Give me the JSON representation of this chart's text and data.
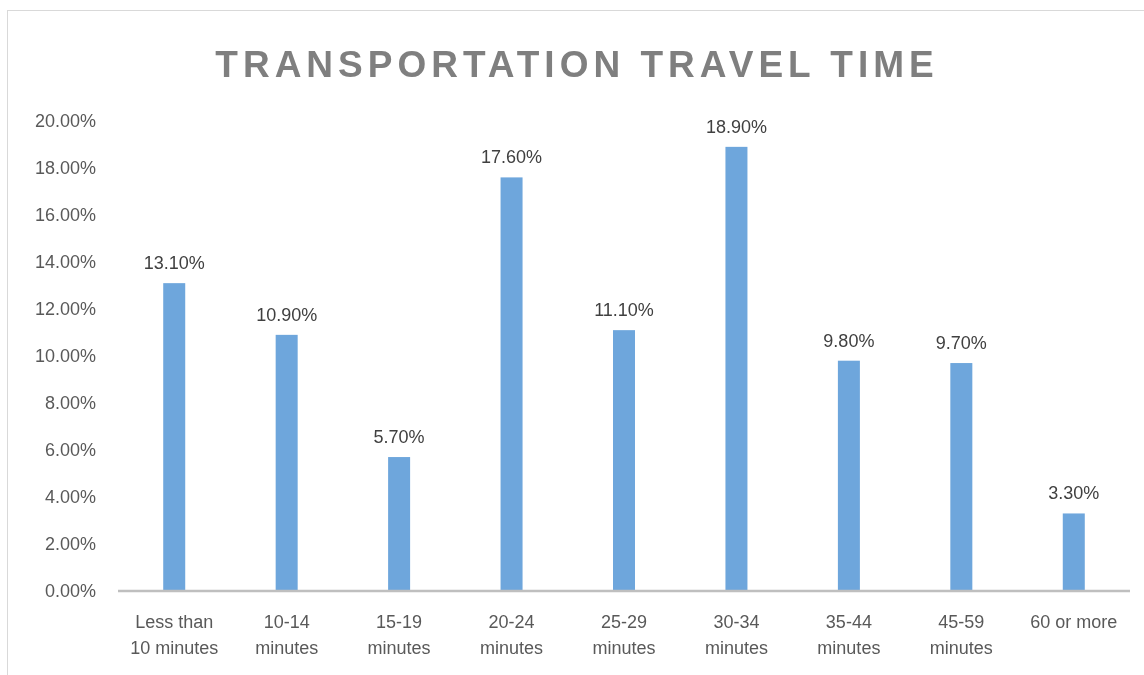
{
  "chart_data": {
    "type": "bar",
    "title": "TRANSPORTATION TRAVEL TIME",
    "categories": [
      "Less than 10 minutes",
      "10-14 minutes",
      "15-19 minutes",
      "20-24 minutes",
      "25-29 minutes",
      "30-34 minutes",
      "35-44 minutes",
      "45-59 minutes",
      "60 or more"
    ],
    "values": [
      13.1,
      10.9,
      5.7,
      17.6,
      11.1,
      18.9,
      9.8,
      9.7,
      3.3
    ],
    "value_labels": [
      "13.10%",
      "10.90%",
      "5.70%",
      "17.60%",
      "11.10%",
      "18.90%",
      "9.80%",
      "9.70%",
      "3.30%"
    ],
    "color": "#6ea6dc",
    "ylim": [
      0,
      20
    ],
    "yticks": [
      {
        "value": 0,
        "label": "0.00%"
      },
      {
        "value": 2,
        "label": "2.00%"
      },
      {
        "value": 4,
        "label": "4.00%"
      },
      {
        "value": 6,
        "label": "6.00%"
      },
      {
        "value": 8,
        "label": "8.00%"
      },
      {
        "value": 10,
        "label": "10.00%"
      },
      {
        "value": 12,
        "label": "12.00%"
      },
      {
        "value": 14,
        "label": "14.00%"
      },
      {
        "value": 16,
        "label": "16.00%"
      },
      {
        "value": 18,
        "label": "18.00%"
      },
      {
        "value": 20,
        "label": "20.00%"
      }
    ]
  }
}
